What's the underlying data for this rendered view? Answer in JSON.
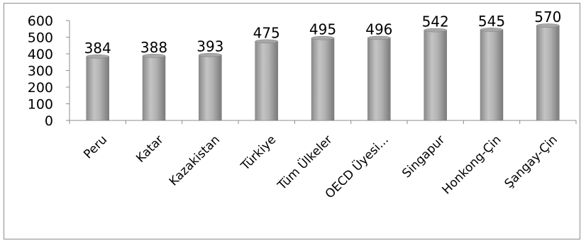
{
  "chart_data": {
    "type": "bar",
    "categories": [
      "Peru",
      "Katar",
      "Kazakistan",
      "Türkiye",
      "Tüm Ülkeler",
      "OECD Üyesi...",
      "Singapur",
      "Honkong-Çin",
      "Şangay-Çin"
    ],
    "values": [
      384,
      388,
      393,
      475,
      495,
      496,
      542,
      545,
      570
    ],
    "yticks": [
      0,
      100,
      200,
      300,
      400,
      500,
      600
    ],
    "ylim": [
      0,
      600
    ],
    "grid": false,
    "legend": "none",
    "bar_color": "#9a9a9a"
  }
}
